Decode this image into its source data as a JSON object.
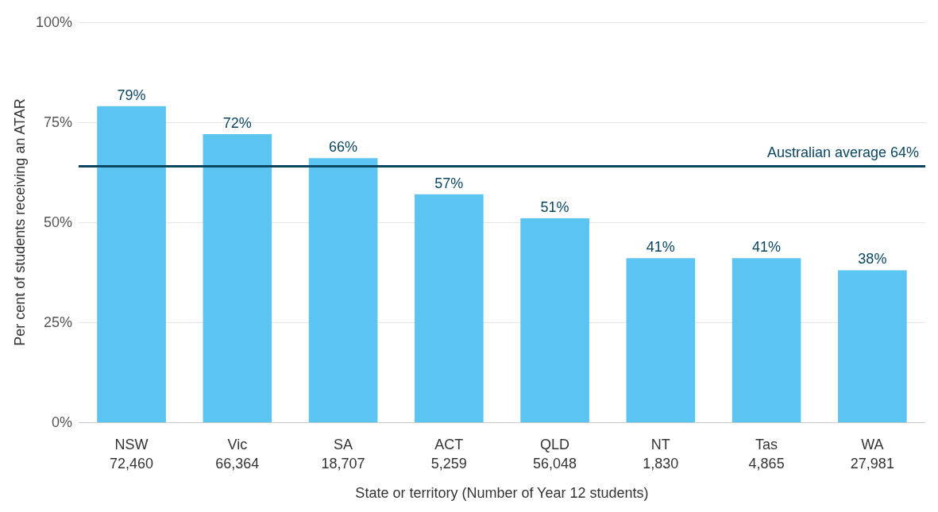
{
  "chart_data": {
    "type": "bar",
    "xlabel": "State or territory (Number of Year 12 students)",
    "ylabel": "Per cent of students receiving an ATAR",
    "categories": [
      "NSW\n72,460",
      "Vic\n66,364",
      "SA\n18,707",
      "ACT\n5,259",
      "QLD\n56,048",
      "NT\n1,830",
      "Tas\n4,865",
      "WA\n27,981"
    ],
    "values": [
      79,
      72,
      66,
      57,
      51,
      41,
      41,
      38
    ],
    "value_labels": [
      "79%",
      "72%",
      "66%",
      "57%",
      "51%",
      "41%",
      "41%",
      "38%"
    ],
    "color": "#5bc4f1",
    "ylim": [
      0,
      100
    ],
    "yticks": [
      {
        "value": 0,
        "label": "0%"
      },
      {
        "value": 25,
        "label": "25%"
      },
      {
        "value": 50,
        "label": "50%"
      },
      {
        "value": 75,
        "label": "75%"
      },
      {
        "value": 100,
        "label": "100%"
      }
    ],
    "grid": "y",
    "ref_lines": [
      {
        "axis": "y",
        "value": 64,
        "label": "Australian average 64%",
        "color": "#0b4660"
      }
    ]
  }
}
